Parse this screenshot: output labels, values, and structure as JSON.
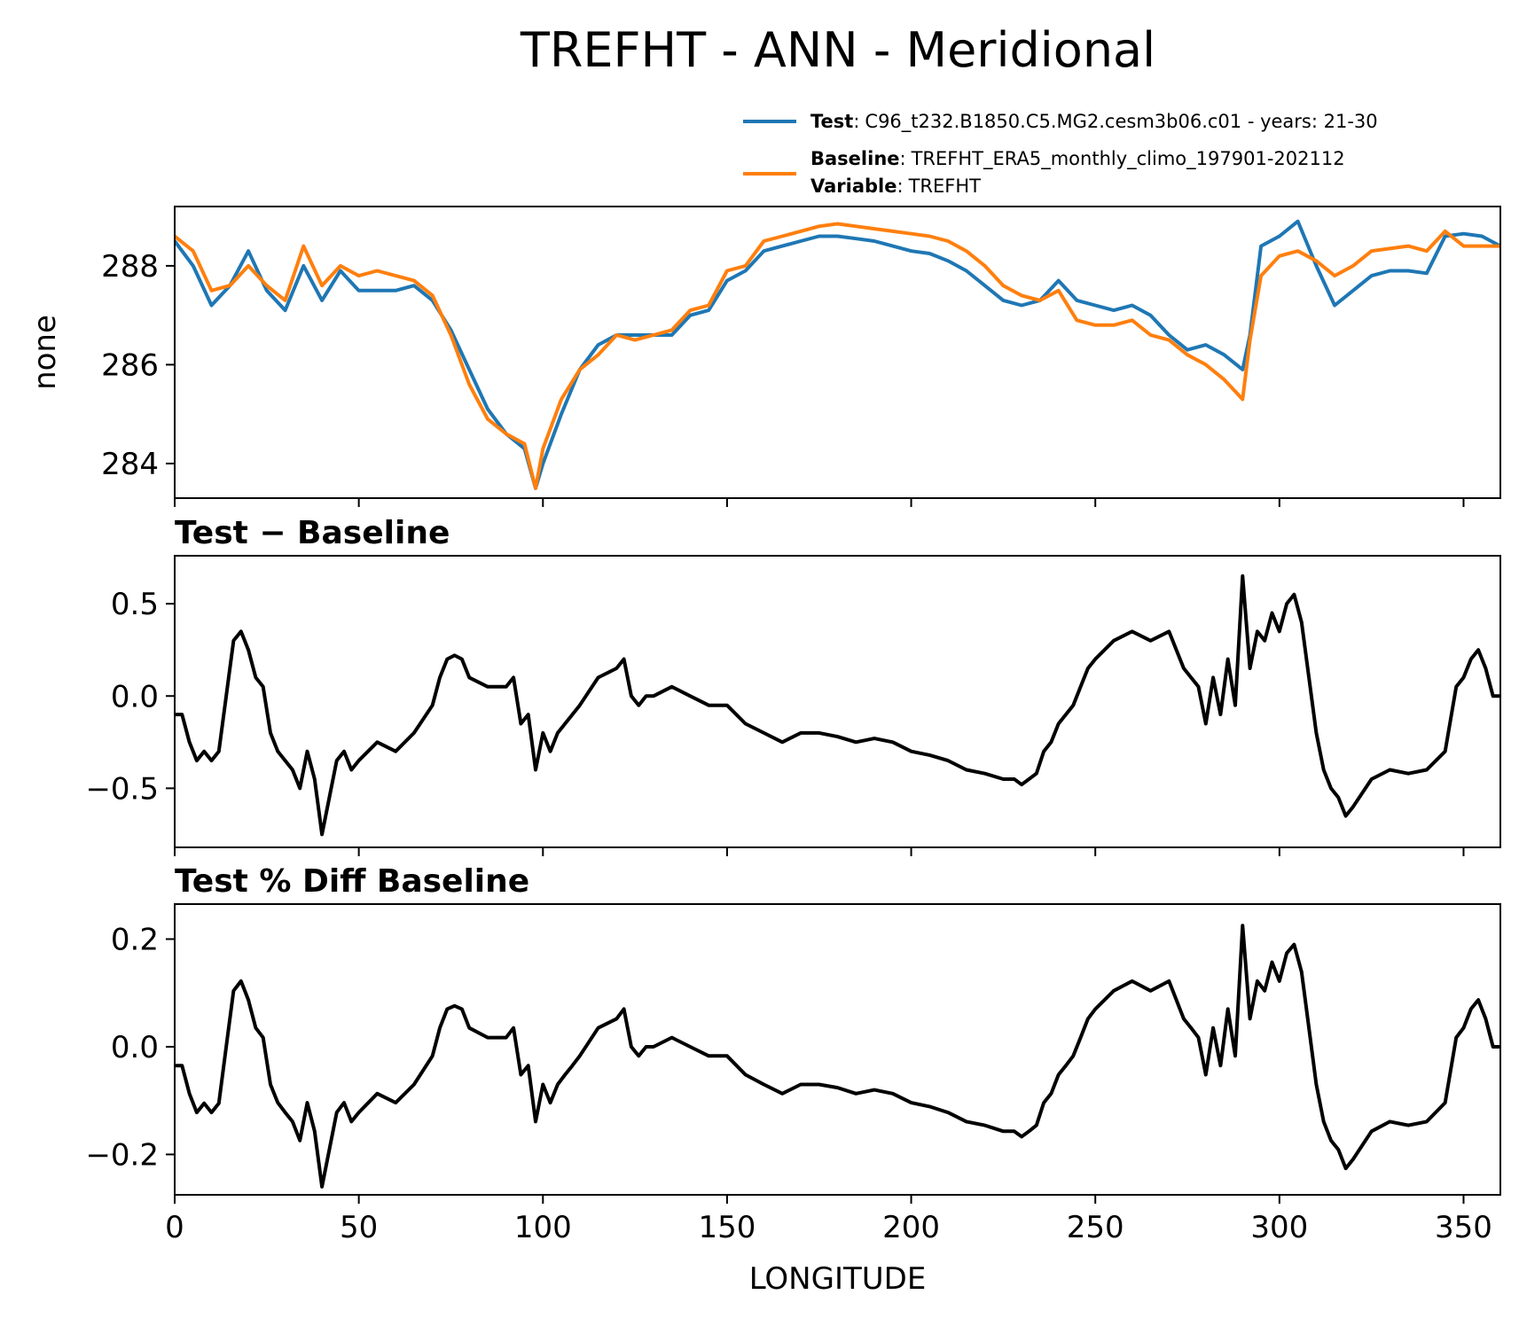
{
  "figure": {
    "title": "TREFHT - ANN - Meridional"
  },
  "legend": {
    "test": {
      "key": "Test",
      "value": "C96_t232.B1850.C5.MG2.cesm3b06.c01 - years: 21-30",
      "color": "#1f77b4"
    },
    "baseline": {
      "key": "Baseline",
      "value": "TREFHT_ERA5_monthly_climo_197901-202112",
      "color": "#ff7f0e"
    },
    "variable": {
      "key": "Variable",
      "value": "TREFHT"
    },
    "separator": ":"
  },
  "chart_data": [
    {
      "type": "line",
      "title": "",
      "xlabel": "",
      "ylabel": "none",
      "xlim": [
        0,
        360
      ],
      "ylim": [
        283.3,
        289.2
      ],
      "yticks": [
        284,
        286,
        288
      ],
      "ytick_labels": [
        "284",
        "286",
        "288"
      ],
      "x": [
        0,
        5,
        10,
        15,
        20,
        25,
        30,
        35,
        40,
        45,
        50,
        55,
        60,
        65,
        70,
        75,
        80,
        85,
        90,
        95,
        98,
        100,
        105,
        110,
        115,
        120,
        125,
        130,
        135,
        140,
        145,
        150,
        155,
        160,
        165,
        170,
        175,
        180,
        185,
        190,
        195,
        200,
        205,
        210,
        215,
        220,
        225,
        230,
        235,
        240,
        245,
        250,
        255,
        260,
        265,
        270,
        275,
        280,
        285,
        290,
        292,
        295,
        300,
        305,
        310,
        315,
        320,
        325,
        330,
        335,
        340,
        345,
        350,
        355,
        360
      ],
      "series": [
        {
          "name": "Test",
          "color": "#1f77b4",
          "values": [
            288.5,
            288.0,
            287.2,
            287.6,
            288.3,
            287.5,
            287.1,
            288.0,
            287.3,
            287.9,
            287.5,
            287.5,
            287.5,
            287.6,
            287.3,
            286.7,
            285.9,
            285.1,
            284.6,
            284.3,
            283.5,
            284.0,
            285.0,
            285.9,
            286.4,
            286.6,
            286.6,
            286.6,
            286.6,
            287.0,
            287.1,
            287.7,
            287.9,
            288.3,
            288.4,
            288.5,
            288.6,
            288.6,
            288.55,
            288.5,
            288.4,
            288.3,
            288.25,
            288.1,
            287.9,
            287.6,
            287.3,
            287.2,
            287.3,
            287.7,
            287.3,
            287.2,
            287.1,
            287.2,
            287.0,
            286.6,
            286.3,
            286.4,
            286.2,
            285.9,
            286.6,
            288.4,
            288.6,
            288.9,
            288.0,
            287.2,
            287.5,
            287.8,
            287.9,
            287.9,
            287.85,
            288.6,
            288.65,
            288.6,
            288.4
          ]
        },
        {
          "name": "Baseline",
          "color": "#ff7f0e",
          "values": [
            288.6,
            288.3,
            287.5,
            287.6,
            288.0,
            287.6,
            287.3,
            288.4,
            287.6,
            288.0,
            287.8,
            287.9,
            287.8,
            287.7,
            287.4,
            286.6,
            285.6,
            284.9,
            284.6,
            284.4,
            283.5,
            284.3,
            285.3,
            285.9,
            286.2,
            286.6,
            286.5,
            286.6,
            286.7,
            287.1,
            287.2,
            287.9,
            288.0,
            288.5,
            288.6,
            288.7,
            288.8,
            288.85,
            288.8,
            288.75,
            288.7,
            288.65,
            288.6,
            288.5,
            288.3,
            288.0,
            287.6,
            287.4,
            287.3,
            287.5,
            286.9,
            286.8,
            286.8,
            286.9,
            286.6,
            286.5,
            286.2,
            286.0,
            285.7,
            285.3,
            286.5,
            287.8,
            288.2,
            288.3,
            288.1,
            287.8,
            288.0,
            288.3,
            288.35,
            288.4,
            288.3,
            288.7,
            288.4,
            288.4,
            288.4
          ]
        }
      ]
    },
    {
      "type": "line",
      "title": "Test − Baseline",
      "xlabel": "",
      "ylabel": "",
      "xlim": [
        0,
        360
      ],
      "ylim": [
        -0.82,
        0.76
      ],
      "yticks": [
        -0.5,
        0.0,
        0.5
      ],
      "ytick_labels": [
        "−0.5",
        "0.0",
        "0.5"
      ],
      "x": [
        0,
        2,
        4,
        6,
        8,
        10,
        12,
        14,
        16,
        18,
        20,
        22,
        24,
        26,
        28,
        30,
        32,
        34,
        36,
        38,
        40,
        42,
        44,
        46,
        48,
        50,
        55,
        60,
        65,
        70,
        72,
        74,
        76,
        78,
        80,
        85,
        90,
        92,
        94,
        96,
        98,
        100,
        102,
        104,
        106,
        108,
        110,
        115,
        120,
        122,
        124,
        126,
        128,
        130,
        135,
        140,
        145,
        150,
        155,
        160,
        165,
        170,
        175,
        180,
        185,
        190,
        195,
        200,
        205,
        210,
        215,
        220,
        225,
        228,
        230,
        232,
        234,
        236,
        238,
        240,
        242,
        244,
        246,
        248,
        250,
        255,
        260,
        265,
        270,
        272,
        274,
        276,
        278,
        280,
        282,
        284,
        286,
        288,
        290,
        292,
        294,
        296,
        298,
        300,
        302,
        304,
        306,
        308,
        310,
        312,
        314,
        316,
        318,
        320,
        325,
        330,
        335,
        340,
        345,
        348,
        350,
        352,
        354,
        356,
        358,
        360
      ],
      "series": [
        {
          "name": "",
          "color": "#000000",
          "values": [
            -0.1,
            -0.1,
            -0.25,
            -0.35,
            -0.3,
            -0.35,
            -0.3,
            0.0,
            0.3,
            0.35,
            0.25,
            0.1,
            0.05,
            -0.2,
            -0.3,
            -0.35,
            -0.4,
            -0.5,
            -0.3,
            -0.45,
            -0.75,
            -0.55,
            -0.35,
            -0.3,
            -0.4,
            -0.35,
            -0.25,
            -0.3,
            -0.2,
            -0.05,
            0.1,
            0.2,
            0.22,
            0.2,
            0.1,
            0.05,
            0.05,
            0.1,
            -0.15,
            -0.1,
            -0.4,
            -0.2,
            -0.3,
            -0.2,
            -0.15,
            -0.1,
            -0.05,
            0.1,
            0.15,
            0.2,
            0.0,
            -0.05,
            0.0,
            0.0,
            0.05,
            0.0,
            -0.05,
            -0.05,
            -0.15,
            -0.2,
            -0.25,
            -0.2,
            -0.2,
            -0.22,
            -0.25,
            -0.23,
            -0.25,
            -0.3,
            -0.32,
            -0.35,
            -0.4,
            -0.42,
            -0.45,
            -0.45,
            -0.48,
            -0.45,
            -0.42,
            -0.3,
            -0.25,
            -0.15,
            -0.1,
            -0.05,
            0.05,
            0.15,
            0.2,
            0.3,
            0.35,
            0.3,
            0.35,
            0.25,
            0.15,
            0.1,
            0.05,
            -0.15,
            0.1,
            -0.1,
            0.2,
            -0.05,
            0.65,
            0.15,
            0.35,
            0.3,
            0.45,
            0.35,
            0.5,
            0.55,
            0.4,
            0.1,
            -0.2,
            -0.4,
            -0.5,
            -0.55,
            -0.65,
            -0.6,
            -0.45,
            -0.4,
            -0.42,
            -0.4,
            -0.3,
            0.05,
            0.1,
            0.2,
            0.25,
            0.15,
            0.0,
            0.0
          ]
        }
      ]
    },
    {
      "type": "line",
      "title": "Test % Diff Baseline",
      "xlabel": "LONGITUDE",
      "ylabel": "",
      "xlim": [
        0,
        360
      ],
      "ylim": [
        -0.275,
        0.265
      ],
      "yticks": [
        -0.2,
        0.0,
        0.2
      ],
      "ytick_labels": [
        "−0.2",
        "0.0",
        "0.2"
      ],
      "xticks": [
        0,
        50,
        100,
        150,
        200,
        250,
        300,
        350
      ],
      "xtick_labels": [
        "0",
        "50",
        "100",
        "150",
        "200",
        "250",
        "300",
        "350"
      ],
      "x": [
        0,
        2,
        4,
        6,
        8,
        10,
        12,
        14,
        16,
        18,
        20,
        22,
        24,
        26,
        28,
        30,
        32,
        34,
        36,
        38,
        40,
        42,
        44,
        46,
        48,
        50,
        55,
        60,
        65,
        70,
        72,
        74,
        76,
        78,
        80,
        85,
        90,
        92,
        94,
        96,
        98,
        100,
        102,
        104,
        106,
        108,
        110,
        115,
        120,
        122,
        124,
        126,
        128,
        130,
        135,
        140,
        145,
        150,
        155,
        160,
        165,
        170,
        175,
        180,
        185,
        190,
        195,
        200,
        205,
        210,
        215,
        220,
        225,
        228,
        230,
        232,
        234,
        236,
        238,
        240,
        242,
        244,
        246,
        248,
        250,
        255,
        260,
        265,
        270,
        272,
        274,
        276,
        278,
        280,
        282,
        284,
        286,
        288,
        290,
        292,
        294,
        296,
        298,
        300,
        302,
        304,
        306,
        308,
        310,
        312,
        314,
        316,
        318,
        320,
        325,
        330,
        335,
        340,
        345,
        348,
        350,
        352,
        354,
        356,
        358,
        360
      ],
      "series": [
        {
          "name": "",
          "color": "#000000",
          "values": [
            -0.035,
            -0.035,
            -0.087,
            -0.122,
            -0.105,
            -0.122,
            -0.105,
            0.0,
            0.104,
            0.122,
            0.087,
            0.035,
            0.017,
            -0.07,
            -0.104,
            -0.122,
            -0.139,
            -0.174,
            -0.104,
            -0.157,
            -0.26,
            -0.191,
            -0.122,
            -0.104,
            -0.139,
            -0.122,
            -0.087,
            -0.104,
            -0.07,
            -0.017,
            0.035,
            0.07,
            0.076,
            0.07,
            0.035,
            0.017,
            0.017,
            0.035,
            -0.052,
            -0.035,
            -0.139,
            -0.07,
            -0.104,
            -0.07,
            -0.052,
            -0.035,
            -0.017,
            0.035,
            0.052,
            0.07,
            0.0,
            -0.017,
            0.0,
            0.0,
            0.017,
            0.0,
            -0.017,
            -0.017,
            -0.052,
            -0.07,
            -0.087,
            -0.07,
            -0.07,
            -0.076,
            -0.087,
            -0.08,
            -0.087,
            -0.104,
            -0.111,
            -0.122,
            -0.139,
            -0.146,
            -0.157,
            -0.157,
            -0.167,
            -0.157,
            -0.146,
            -0.104,
            -0.087,
            -0.052,
            -0.035,
            -0.017,
            0.017,
            0.052,
            0.07,
            0.104,
            0.122,
            0.104,
            0.122,
            0.087,
            0.052,
            0.035,
            0.017,
            -0.052,
            0.035,
            -0.035,
            0.07,
            -0.017,
            0.225,
            0.052,
            0.122,
            0.104,
            0.157,
            0.122,
            0.174,
            0.19,
            0.139,
            0.035,
            -0.07,
            -0.139,
            -0.174,
            -0.191,
            -0.226,
            -0.209,
            -0.157,
            -0.139,
            -0.146,
            -0.139,
            -0.104,
            0.017,
            0.035,
            0.07,
            0.087,
            0.052,
            0.0,
            0.0
          ]
        }
      ]
    }
  ]
}
